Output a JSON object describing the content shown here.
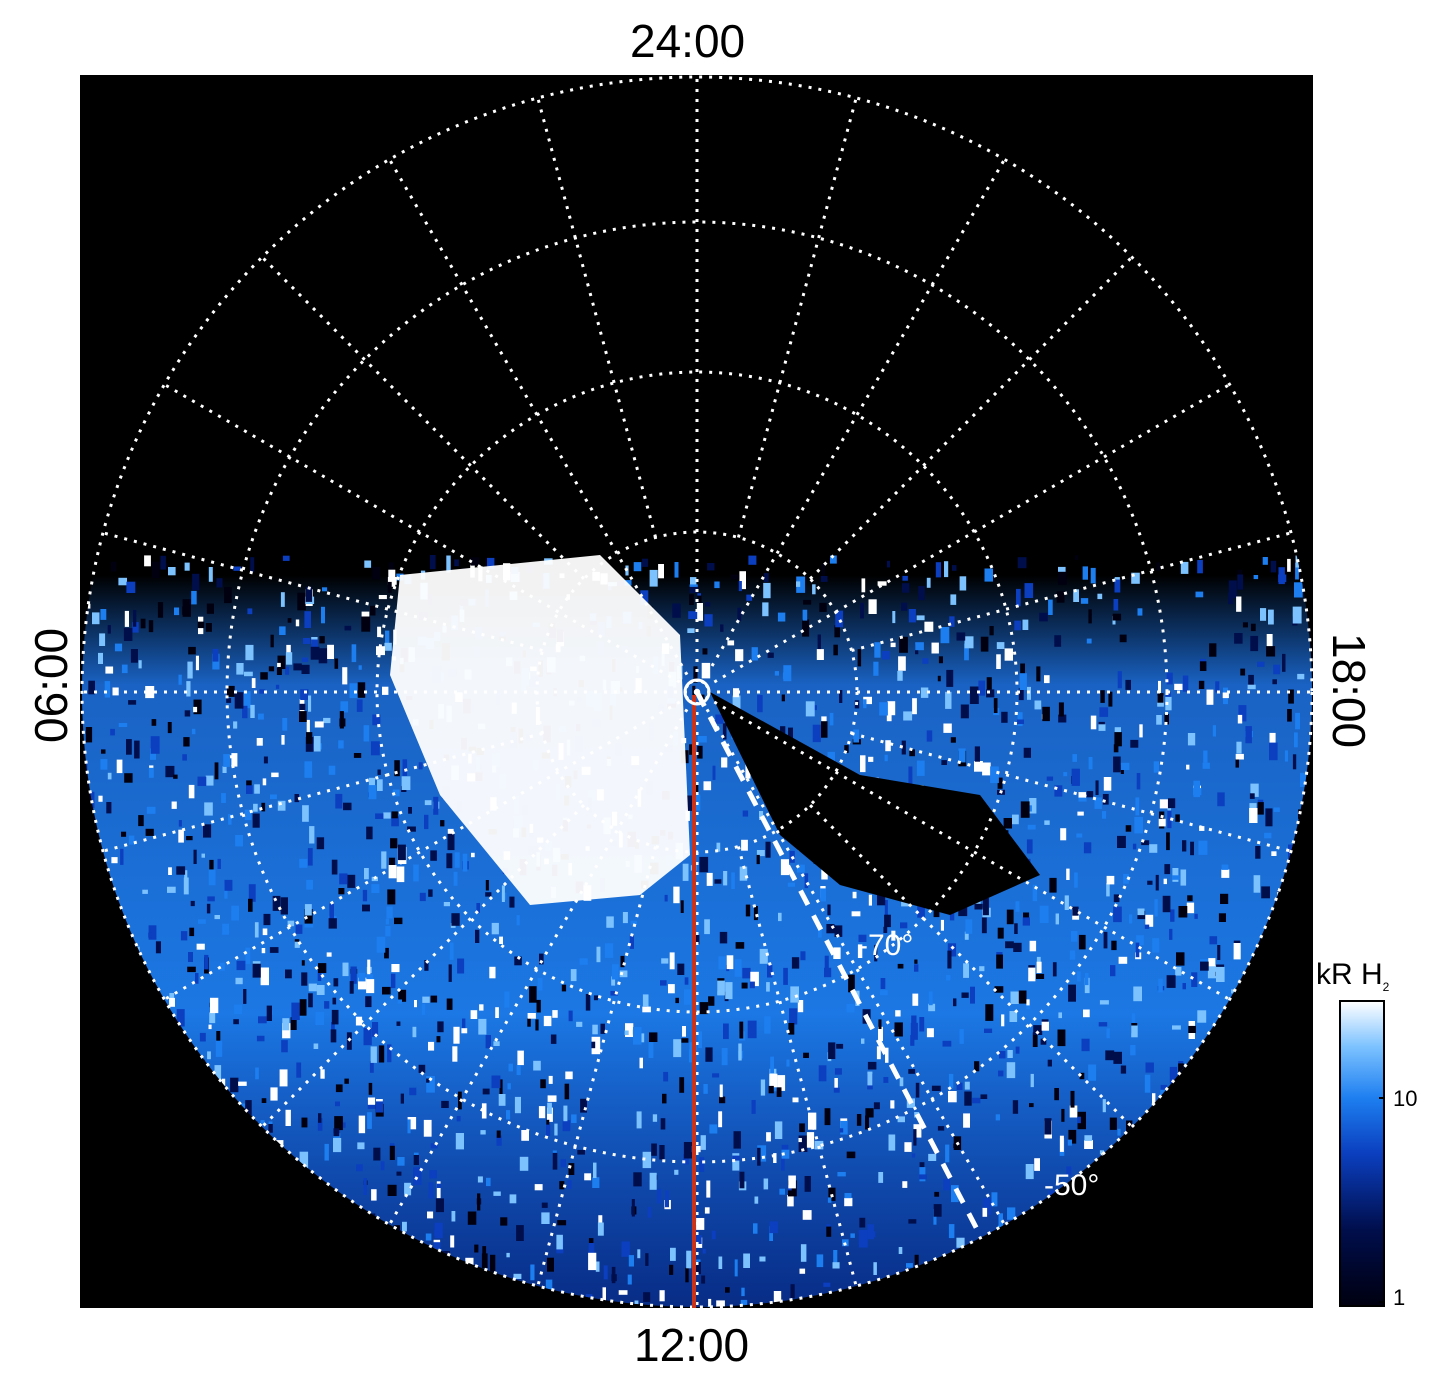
{
  "local_time_labels": {
    "top": "24:00",
    "bottom": "12:00",
    "left": "06:00",
    "right": "18:00"
  },
  "latitude_labels": {
    "inner": "-70°",
    "outer": "-50°"
  },
  "colorbar": {
    "title": "kR H",
    "title_subscript": "2",
    "ticks": [
      "10",
      "1"
    ],
    "colors": [
      "#000010",
      "#000e4c",
      "#0b3fbf",
      "#1d7ef0",
      "#7cc2ff",
      "#ffffff"
    ]
  },
  "colors": {
    "background": "#000000",
    "grid": "#ffffff",
    "noon_line": "#c8331a"
  }
}
